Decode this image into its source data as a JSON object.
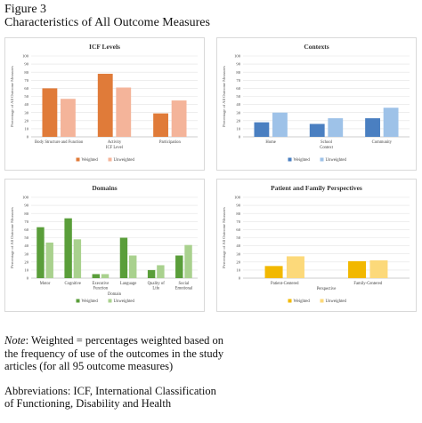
{
  "figure": {
    "label": "Figure 3",
    "title": "Characteristics of All Outcome Measures"
  },
  "chart_data": [
    {
      "type": "bar",
      "title": "ICF Levels",
      "xlabel": "ICF Level",
      "ylabel": "Percentage of All Outcome Measures",
      "ylim": [
        0,
        100
      ],
      "yticks": [
        0,
        10,
        20,
        30,
        40,
        50,
        60,
        70,
        80,
        90,
        100
      ],
      "categories": [
        "Body Structure and Function",
        "Activity",
        "Participation"
      ],
      "series": [
        {
          "name": "Weighted",
          "values": [
            60,
            78,
            29
          ],
          "color": "#e07b39"
        },
        {
          "name": "Unweighted",
          "values": [
            47,
            61,
            45
          ],
          "color": "#f4b49a"
        }
      ],
      "legend": "bottom"
    },
    {
      "type": "bar",
      "title": "Contexts",
      "xlabel": "Context",
      "ylabel": "Percentage of All Outcome Measures",
      "ylim": [
        0,
        100
      ],
      "yticks": [
        0,
        10,
        20,
        30,
        40,
        50,
        60,
        70,
        80,
        90,
        100
      ],
      "categories": [
        "Home",
        "School",
        "Community"
      ],
      "series": [
        {
          "name": "Weighted",
          "values": [
            18,
            16,
            23
          ],
          "color": "#4a7fc1"
        },
        {
          "name": "Unweighted",
          "values": [
            30,
            23,
            36
          ],
          "color": "#9ec2e8"
        }
      ],
      "legend": "bottom"
    },
    {
      "type": "bar",
      "title": "Domains",
      "xlabel": "Domain",
      "ylabel": "Percentage of All Outcome Measures",
      "ylim": [
        0,
        100
      ],
      "yticks": [
        0,
        10,
        20,
        30,
        40,
        50,
        60,
        70,
        80,
        90,
        100
      ],
      "categories": [
        "Motor",
        "Cognitive",
        "Executive Function",
        "Language",
        "Quality of Life",
        "Social Emotional"
      ],
      "series": [
        {
          "name": "Weighted",
          "values": [
            63,
            74,
            5,
            50,
            10,
            28
          ],
          "color": "#5a9e3a"
        },
        {
          "name": "Unweighted",
          "values": [
            44,
            48,
            5,
            28,
            16,
            41
          ],
          "color": "#a9d18e"
        }
      ],
      "legend": "bottom"
    },
    {
      "type": "bar",
      "title": "Patient and Family Perspectives",
      "xlabel": "Perspective",
      "ylabel": "Percentage of All Outcome Measures",
      "ylim": [
        0,
        100
      ],
      "yticks": [
        0,
        10,
        20,
        30,
        40,
        50,
        60,
        70,
        80,
        90,
        100
      ],
      "categories": [
        "Patient-Centered",
        "Family-Centered"
      ],
      "series": [
        {
          "name": "Weighted",
          "values": [
            15,
            21
          ],
          "color": "#f2b800"
        },
        {
          "name": "Unweighted",
          "values": [
            27,
            22
          ],
          "color": "#fcd97a"
        }
      ],
      "legend": "bottom"
    }
  ],
  "note": {
    "label": "Note",
    "text": ": Weighted = percentages weighted based on the frequency of use of the outcomes in the study articles (for all 95 outcome measures)"
  },
  "abbreviations": "Abbreviations: ICF, International Classification of Functioning, Disability and Health"
}
